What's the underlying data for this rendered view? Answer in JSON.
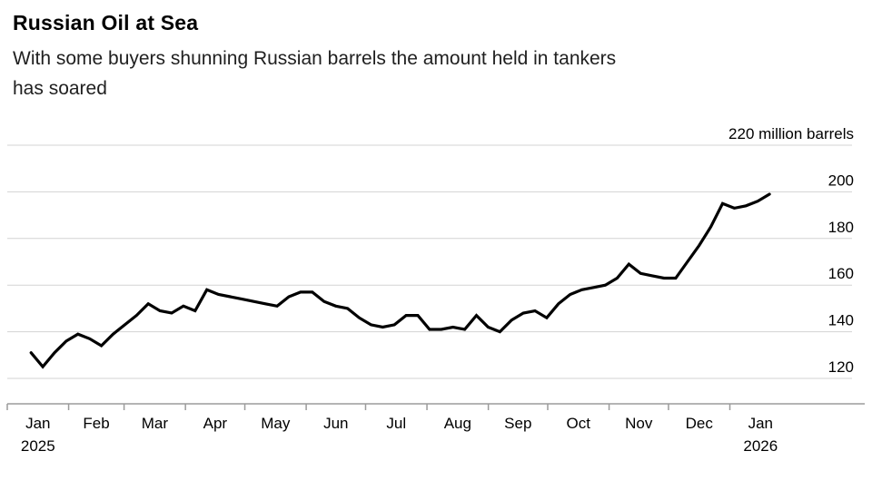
{
  "header": {
    "title": "Russian Oil at Sea",
    "subtitle_line1": "With some buyers shunning Russian barrels the amount held in tankers",
    "subtitle_line2": "has soared"
  },
  "chart_data": {
    "type": "line",
    "title": "Russian Oil at Sea",
    "subtitle": "With some buyers shunning Russian barrels the amount held in tankers has soared",
    "unit_label": "220 million barrels",
    "y_ticks": [
      120,
      140,
      160,
      180,
      200,
      220
    ],
    "y_max": 220,
    "y_axis_side": "right",
    "grid": "horizontal",
    "x_range": [
      "Jan 2025",
      "Jan 2026"
    ],
    "months": [
      {
        "label": "Jan",
        "year": "2025",
        "days": 31
      },
      {
        "label": "Feb",
        "days": 28
      },
      {
        "label": "Mar",
        "days": 31
      },
      {
        "label": "Apr",
        "days": 30
      },
      {
        "label": "May",
        "days": 31
      },
      {
        "label": "Jun",
        "days": 30
      },
      {
        "label": "Jul",
        "days": 31
      },
      {
        "label": "Aug",
        "days": 31
      },
      {
        "label": "Sep",
        "days": 30
      },
      {
        "label": "Oct",
        "days": 31
      },
      {
        "label": "Nov",
        "days": 30
      },
      {
        "label": "Dec",
        "days": 31
      },
      {
        "label": "Jan",
        "year": "2026",
        "days": 31
      }
    ],
    "values": [
      131,
      125,
      131,
      136,
      139,
      137,
      134,
      139,
      143,
      147,
      152,
      149,
      148,
      151,
      149,
      158,
      156,
      155,
      154,
      153,
      152,
      151,
      155,
      157,
      157,
      153,
      151,
      150,
      146,
      143,
      142,
      143,
      147,
      147,
      141,
      141,
      142,
      141,
      147,
      142,
      140,
      145,
      148,
      149,
      146,
      152,
      156,
      158,
      159,
      160,
      163,
      169,
      165,
      164,
      163,
      163,
      170,
      177,
      185,
      195,
      193,
      194,
      196,
      199
    ],
    "colors": {
      "line": "#000000",
      "grid": "#d3d3d3",
      "axis": "#9b9b9b",
      "text": "#000000"
    }
  }
}
